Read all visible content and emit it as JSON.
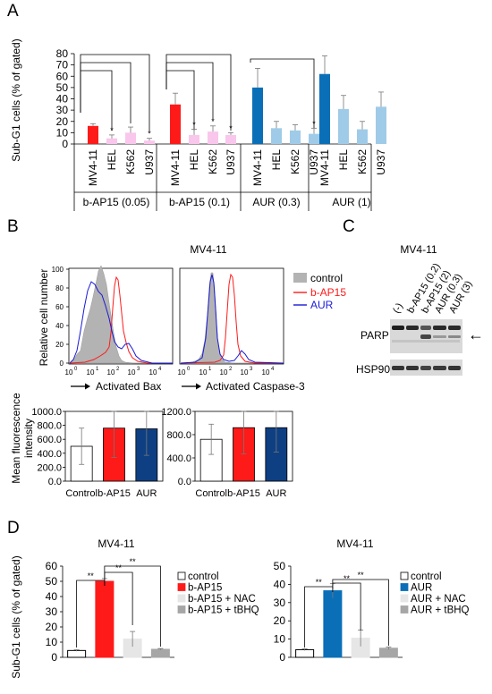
{
  "panels": {
    "a": "A",
    "b": "B",
    "c": "C",
    "d": "D"
  },
  "colors": {
    "red": "#ff1a1a",
    "pink": "#f9c6ec",
    "blue": "#0b6fb8",
    "lightblue": "#9fcbe8",
    "gray": "#bfbfbf",
    "lightgray": "#e6e6e6",
    "darkgray": "#a6a6a6",
    "navy": "#0e3f83",
    "flow_blue": "#1a1ad6"
  },
  "panelA": {
    "ylabel": "Sub-G1 cells (% of gated)",
    "yticks": [
      "0",
      "10",
      "20",
      "30",
      "40",
      "50",
      "60",
      "70",
      "80"
    ],
    "groups": [
      "b-AP15 (0.05)",
      "b-AP15 (0.1)",
      "AUR (0.3)",
      "AUR (1)"
    ],
    "star": "*",
    "chart_data": {
      "type": "bar",
      "ylim": [
        0,
        80
      ],
      "ylabel": "Sub-G1 cells (% of gated)",
      "categories": [
        "MV4-11",
        "HEL",
        "K562",
        "U937",
        "MV4-11",
        "HEL",
        "K562",
        "U937",
        "MV4-11",
        "HEL",
        "K562",
        "U937",
        "MV4-11",
        "HEL",
        "K562",
        "U937"
      ],
      "values": [
        16,
        5,
        10,
        3,
        35,
        8,
        11,
        8,
        50,
        14,
        12,
        9,
        62,
        31,
        13,
        33
      ],
      "errors": [
        2,
        3,
        5,
        2,
        10,
        5,
        5,
        2,
        17,
        6,
        5,
        5,
        16,
        12,
        7,
        13
      ],
      "stars": [
        false,
        true,
        false,
        true,
        false,
        true,
        true,
        true,
        false,
        false,
        false,
        true,
        false,
        false,
        false,
        false
      ]
    }
  },
  "panelB": {
    "title": "MV4-11",
    "ylabel": "Relative cell number",
    "yticks": [
      "0",
      "20",
      "40",
      "60",
      "80",
      "100"
    ],
    "xticks": [
      "10",
      "10",
      "10",
      "10",
      "10"
    ],
    "xexp": [
      "0",
      "1",
      "2",
      "3",
      "4"
    ],
    "xlabel_left": "Activated Bax",
    "xlabel_right": "Activated Caspase-3",
    "legend": [
      "control",
      "b-AP15",
      "AUR"
    ],
    "mfi_ylabel_1": "Mean fluorescence",
    "mfi_ylabel_2": "intensity",
    "chart_data": [
      {
        "type": "bar",
        "categories": [
          "Control",
          "b-AP15",
          "AUR"
        ],
        "values": [
          500,
          760,
          750
        ],
        "errors": [
          260,
          420,
          380
        ],
        "ylim": [
          0,
          1000
        ],
        "yticks": [
          "0.0",
          "200.0",
          "400.0",
          "600.0",
          "800.0",
          "1000.0"
        ]
      },
      {
        "type": "bar",
        "categories": [
          "Control",
          "b-AP15",
          "AUR"
        ],
        "values": [
          720,
          920,
          920
        ],
        "errors": [
          260,
          450,
          420
        ],
        "ylim": [
          0,
          1200
        ],
        "yticks": [
          "0.0",
          "400.0",
          "800.0",
          "1200.0"
        ]
      }
    ]
  },
  "panelC": {
    "title": "MV4-11",
    "lanes": [
      "(-)",
      "b-AP15 (0.2)",
      "b-AP15 (2)",
      "AUR (0.3)",
      "AUR (3)"
    ],
    "rows": [
      "PARP",
      "HSP90"
    ],
    "arrow": "←"
  },
  "panelD": {
    "left": {
      "title": "MV4-11",
      "ylabel": "Sub-G1 cells (% of gated)",
      "legend": [
        "control",
        "b-AP15",
        "b-AP15 + NAC",
        "b-AP15 + tBHQ"
      ],
      "sig": "**",
      "chart_data": {
        "type": "bar",
        "ylim": [
          0,
          60
        ],
        "yticks": [
          "0",
          "10",
          "20",
          "30",
          "40",
          "50",
          "60"
        ],
        "categories": [
          "control",
          "b-AP15",
          "b-AP15 + NAC",
          "b-AP15 + tBHQ"
        ],
        "values": [
          4.5,
          50,
          12,
          5.3
        ],
        "errors": [
          0.5,
          1.8,
          5,
          0.5
        ]
      }
    },
    "right": {
      "title": "MV4-11",
      "legend": [
        "control",
        "AUR",
        "AUR + NAC",
        "AUR + tBHQ"
      ],
      "sig": "**",
      "chart_data": {
        "type": "bar",
        "ylim": [
          0,
          50
        ],
        "yticks": [
          "0",
          "10",
          "20",
          "30",
          "40",
          "50"
        ],
        "categories": [
          "control",
          "AUR",
          "AUR + NAC",
          "AUR + tBHQ"
        ],
        "values": [
          4.2,
          36.5,
          10.5,
          5
        ],
        "errors": [
          0.5,
          4,
          4.5,
          0.7
        ]
      }
    }
  }
}
